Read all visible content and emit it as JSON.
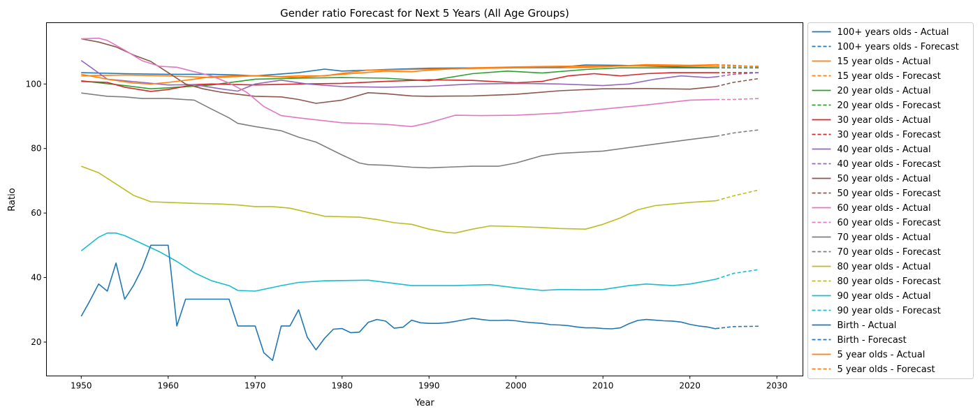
{
  "chart_data": {
    "type": "line",
    "title": "Gender ratio Forecast for Next 5 Years (All Age Groups)",
    "xlabel": "Year",
    "ylabel": "Ratio",
    "xlim": [
      1946,
      2033
    ],
    "ylim": [
      9.5,
      119
    ],
    "xticks": [
      1950,
      1960,
      1970,
      1980,
      1990,
      2000,
      2010,
      2020,
      2030
    ],
    "yticks": [
      20,
      40,
      60,
      80,
      100
    ],
    "legend_position": "outside-right",
    "grid": false,
    "series": [
      {
        "name": "100+ years olds - Actual",
        "color": "#1f77b4",
        "style": "solid",
        "x": [
          1950,
          1955,
          1960,
          1965,
          1968,
          1970,
          1975,
          1978,
          1980,
          1985,
          1990,
          1995,
          2000,
          2005,
          2008,
          2012,
          2016,
          2020,
          2023
        ],
        "y": [
          103.5,
          103.2,
          103.0,
          103.0,
          102.8,
          102.5,
          103.5,
          104.6,
          104.0,
          104.5,
          104.9,
          105.0,
          105.0,
          105.2,
          105.9,
          105.8,
          105.5,
          105.2,
          105.0
        ]
      },
      {
        "name": "100+ years olds - Forecast",
        "color": "#1f77b4",
        "style": "dashed",
        "x": [
          2023,
          2025,
          2028
        ],
        "y": [
          105.0,
          105.0,
          105.0
        ]
      },
      {
        "name": "15 year olds - Actual",
        "color": "#ff7f0e",
        "style": "solid",
        "x": [
          1950,
          1955,
          1960,
          1965,
          1970,
          1975,
          1980,
          1985,
          1988,
          1990,
          1995,
          2000,
          2005,
          2010,
          2015,
          2020,
          2023
        ],
        "y": [
          102.5,
          102.8,
          102.5,
          102.0,
          102.5,
          102.0,
          103.0,
          104.0,
          103.8,
          104.3,
          105.0,
          105.3,
          105.5,
          105.5,
          105.7,
          105.6,
          105.5
        ]
      },
      {
        "name": "15 year olds - Forecast",
        "color": "#ff7f0e",
        "style": "dashed",
        "x": [
          2023,
          2025,
          2028
        ],
        "y": [
          105.5,
          105.5,
          105.5
        ]
      },
      {
        "name": "20 year olds - Actual",
        "color": "#2ca02c",
        "style": "solid",
        "x": [
          1950,
          1955,
          1958,
          1960,
          1965,
          1970,
          1975,
          1980,
          1985,
          1990,
          1995,
          1999,
          2003,
          2008,
          2012,
          2016,
          2020,
          2023
        ],
        "y": [
          101.0,
          99.5,
          98.5,
          98.8,
          99.7,
          101.5,
          101.8,
          102.0,
          101.8,
          101.0,
          103.2,
          104.0,
          103.4,
          104.5,
          105.0,
          105.0,
          105.0,
          105.0
        ]
      },
      {
        "name": "20 year olds - Forecast",
        "color": "#2ca02c",
        "style": "dashed",
        "x": [
          2023,
          2025,
          2028
        ],
        "y": [
          105.0,
          105.0,
          105.0
        ]
      },
      {
        "name": "30 year olds - Actual",
        "color": "#d62728",
        "style": "solid",
        "x": [
          1950,
          1953,
          1955,
          1958,
          1960,
          1963,
          1965,
          1970,
          1975,
          1980,
          1985,
          1990,
          1995,
          2000,
          2003,
          2006,
          2009,
          2012,
          2015,
          2018,
          2020,
          2023
        ],
        "y": [
          100.8,
          100.5,
          99.0,
          97.7,
          98.3,
          99.8,
          100.0,
          99.7,
          100.0,
          100.2,
          100.8,
          101.3,
          101.1,
          100.4,
          100.8,
          102.5,
          103.2,
          102.5,
          103.2,
          103.5,
          103.5,
          103.5
        ]
      },
      {
        "name": "30 year olds - Forecast",
        "color": "#d62728",
        "style": "dashed",
        "x": [
          2023,
          2025,
          2028
        ],
        "y": [
          103.5,
          103.5,
          103.5
        ]
      },
      {
        "name": "40 year olds - Actual",
        "color": "#9467bd",
        "style": "solid",
        "x": [
          1950,
          1953,
          1957,
          1960,
          1963,
          1966,
          1968,
          1970,
          1973,
          1976,
          1980,
          1985,
          1990,
          1995,
          2000,
          2005,
          2010,
          2013,
          2016,
          2019,
          2022,
          2023
        ],
        "y": [
          107.3,
          101.5,
          100.5,
          99.7,
          99.8,
          98.5,
          97.8,
          100.0,
          101.2,
          100.0,
          99.2,
          99.0,
          99.3,
          100.0,
          100.2,
          100.0,
          99.5,
          100.0,
          101.5,
          102.5,
          102.0,
          102.2
        ]
      },
      {
        "name": "40 year olds - Forecast",
        "color": "#9467bd",
        "style": "dashed",
        "x": [
          2023,
          2025,
          2028
        ],
        "y": [
          102.2,
          103.0,
          103.5
        ]
      },
      {
        "name": "50 year olds - Actual",
        "color": "#8c564b",
        "style": "solid",
        "x": [
          1950,
          1952,
          1954,
          1956,
          1958,
          1960,
          1962,
          1964,
          1966,
          1968,
          1970,
          1973,
          1975,
          1977,
          1980,
          1983,
          1985,
          1988,
          1990,
          1995,
          2000,
          2005,
          2010,
          2015,
          2020,
          2023
        ],
        "y": [
          114.0,
          113.0,
          111.5,
          109.0,
          107.0,
          103.5,
          100.0,
          98.5,
          97.5,
          96.8,
          96.2,
          96.0,
          95.2,
          94.0,
          95.0,
          97.3,
          97.0,
          96.3,
          96.2,
          96.3,
          96.8,
          97.9,
          98.5,
          98.6,
          98.4,
          99.2
        ]
      },
      {
        "name": "50 year olds - Forecast",
        "color": "#8c564b",
        "style": "dashed",
        "x": [
          2023,
          2025,
          2028
        ],
        "y": [
          99.2,
          100.5,
          101.7
        ]
      },
      {
        "name": "60 year olds - Actual",
        "color": "#e377c2",
        "style": "solid",
        "x": [
          1950,
          1952,
          1953,
          1955,
          1957,
          1959,
          1961,
          1963,
          1965,
          1967,
          1969,
          1971,
          1973,
          1975,
          1980,
          1985,
          1988,
          1990,
          1993,
          1996,
          2000,
          2005,
          2010,
          2015,
          2020,
          2023
        ],
        "y": [
          114.0,
          114.2,
          113.5,
          110.5,
          107.2,
          105.5,
          105.2,
          103.8,
          102.5,
          100.3,
          97.5,
          93.0,
          90.2,
          89.5,
          88.0,
          87.5,
          86.8,
          88.0,
          90.3,
          90.2,
          90.3,
          91.0,
          92.2,
          93.5,
          95.0,
          95.2
        ]
      },
      {
        "name": "60 year olds - Forecast",
        "color": "#e377c2",
        "style": "dashed",
        "x": [
          2023,
          2025,
          2028
        ],
        "y": [
          95.2,
          95.2,
          95.5
        ]
      },
      {
        "name": "70 year olds - Actual",
        "color": "#7f7f7f",
        "style": "solid",
        "x": [
          1950,
          1953,
          1955,
          1957,
          1960,
          1963,
          1965,
          1967,
          1968,
          1970,
          1973,
          1975,
          1977,
          1980,
          1982,
          1983,
          1985,
          1988,
          1990,
          1995,
          1998,
          2000,
          2003,
          2005,
          2010,
          2015,
          2020,
          2023
        ],
        "y": [
          97.2,
          96.2,
          96.0,
          95.5,
          95.5,
          95.0,
          92.2,
          89.5,
          87.8,
          86.8,
          85.5,
          83.5,
          82.0,
          78.0,
          75.5,
          75.0,
          74.8,
          74.2,
          74.0,
          74.5,
          74.5,
          75.5,
          77.8,
          78.5,
          79.2,
          81.0,
          82.8,
          83.8
        ]
      },
      {
        "name": "70 year olds - Forecast",
        "color": "#7f7f7f",
        "style": "dashed",
        "x": [
          2023,
          2025,
          2028
        ],
        "y": [
          83.8,
          84.8,
          85.8
        ]
      },
      {
        "name": "80 year olds - Actual",
        "color": "#bcbd22",
        "style": "solid",
        "x": [
          1950,
          1952,
          1954,
          1956,
          1958,
          1960,
          1963,
          1966,
          1968,
          1970,
          1972,
          1974,
          1978,
          1982,
          1984,
          1986,
          1988,
          1990,
          1992,
          1993,
          1995,
          1997,
          2000,
          2003,
          2005,
          2008,
          2010,
          2012,
          2014,
          2016,
          2018,
          2020,
          2023
        ],
        "y": [
          74.5,
          72.5,
          69.0,
          65.5,
          63.5,
          63.3,
          63.0,
          62.8,
          62.5,
          62.0,
          62.0,
          61.5,
          59.0,
          58.7,
          58.0,
          57.0,
          56.5,
          55.0,
          54.0,
          53.8,
          55.0,
          56.0,
          55.8,
          55.5,
          55.2,
          55.0,
          56.5,
          58.5,
          61.0,
          62.3,
          62.8,
          63.3,
          63.8
        ]
      },
      {
        "name": "80 year olds - Forecast",
        "color": "#bcbd22",
        "style": "dashed",
        "x": [
          2023,
          2025,
          2028
        ],
        "y": [
          63.8,
          65.3,
          67.2
        ]
      },
      {
        "name": "90 year olds - Actual",
        "color": "#17becf",
        "style": "solid",
        "x": [
          1950,
          1952,
          1953,
          1954,
          1955,
          1957,
          1959,
          1961,
          1963,
          1965,
          1967,
          1968,
          1970,
          1973,
          1975,
          1978,
          1983,
          1988,
          1993,
          1997,
          2000,
          2003,
          2005,
          2008,
          2010,
          2013,
          2015,
          2018,
          2020,
          2023
        ],
        "y": [
          48.3,
          52.5,
          53.8,
          53.8,
          53.0,
          50.5,
          48.0,
          45.0,
          41.5,
          39.0,
          37.5,
          36.0,
          35.8,
          37.5,
          38.5,
          39.0,
          39.2,
          37.5,
          37.5,
          37.8,
          36.8,
          36.0,
          36.3,
          36.2,
          36.3,
          37.5,
          38.0,
          37.5,
          38.0,
          39.5
        ]
      },
      {
        "name": "90 year olds - Forecast",
        "color": "#17becf",
        "style": "dashed",
        "x": [
          2023,
          2025,
          2028
        ],
        "y": [
          39.5,
          41.3,
          42.5
        ]
      },
      {
        "name": "Birth - Actual",
        "color": "#1f77b4",
        "style": "solid",
        "x": [
          1950,
          1951,
          1952,
          1953,
          1954,
          1955,
          1956,
          1957,
          1958,
          1959,
          1960,
          1961,
          1962,
          1963,
          1964,
          1965,
          1966,
          1967,
          1968,
          1969,
          1970,
          1971,
          1972,
          1973,
          1974,
          1975,
          1976,
          1977,
          1978,
          1979,
          1980,
          1981,
          1982,
          1983,
          1984,
          1985,
          1986,
          1987,
          1988,
          1989,
          1990,
          1991,
          1992,
          1993,
          1994,
          1995,
          1996,
          1997,
          1998,
          1999,
          2000,
          2001,
          2002,
          2003,
          2004,
          2005,
          2006,
          2007,
          2008,
          2009,
          2010,
          2011,
          2012,
          2013,
          2014,
          2015,
          2016,
          2017,
          2018,
          2019,
          2020,
          2021,
          2022,
          2023
        ],
        "y": [
          28.0,
          32.8,
          38.0,
          35.8,
          44.5,
          33.3,
          37.5,
          42.8,
          50.0,
          50.0,
          50.0,
          25.0,
          33.3,
          33.3,
          33.3,
          33.3,
          33.3,
          33.3,
          25.0,
          25.0,
          25.0,
          16.7,
          14.3,
          25.0,
          25.0,
          30.0,
          21.5,
          17.6,
          21.2,
          24.0,
          24.2,
          22.9,
          23.1,
          26.1,
          27.0,
          26.5,
          24.3,
          24.6,
          26.8,
          26.0,
          25.8,
          25.8,
          26.0,
          26.4,
          26.9,
          27.4,
          27.0,
          26.7,
          26.7,
          26.8,
          26.6,
          26.2,
          26.0,
          25.8,
          25.4,
          25.3,
          25.1,
          24.7,
          24.4,
          24.4,
          24.2,
          24.1,
          24.4,
          25.7,
          26.7,
          27.0,
          26.8,
          26.6,
          26.5,
          26.2,
          25.5,
          25.0,
          24.7,
          24.1
        ]
      },
      {
        "name": "Birth - Forecast",
        "color": "#1f77b4",
        "style": "dashed",
        "x": [
          2023,
          2025,
          2028
        ],
        "y": [
          24.2,
          24.8,
          24.9
        ]
      },
      {
        "name": "5 year olds - Actual",
        "color": "#ff7f0e",
        "style": "solid",
        "x": [
          1950,
          1953,
          1956,
          1958,
          1960,
          1963,
          1965,
          1968,
          1970,
          1973,
          1975,
          1978,
          1980,
          1983,
          1986,
          1990,
          1995,
          2000,
          2005,
          2010,
          2015,
          2020,
          2023
        ],
        "y": [
          103.0,
          101.5,
          100.3,
          100.0,
          100.5,
          101.5,
          102.3,
          102.5,
          102.6,
          102.3,
          102.5,
          102.5,
          103.3,
          104.3,
          104.4,
          104.6,
          104.8,
          105.0,
          105.0,
          105.3,
          106.0,
          105.8,
          106.0
        ]
      },
      {
        "name": "5 year olds - Forecast",
        "color": "#ff7f0e",
        "style": "dashed",
        "x": [
          2023,
          2025,
          2028
        ],
        "y": [
          106.0,
          105.8,
          105.3
        ]
      }
    ]
  }
}
